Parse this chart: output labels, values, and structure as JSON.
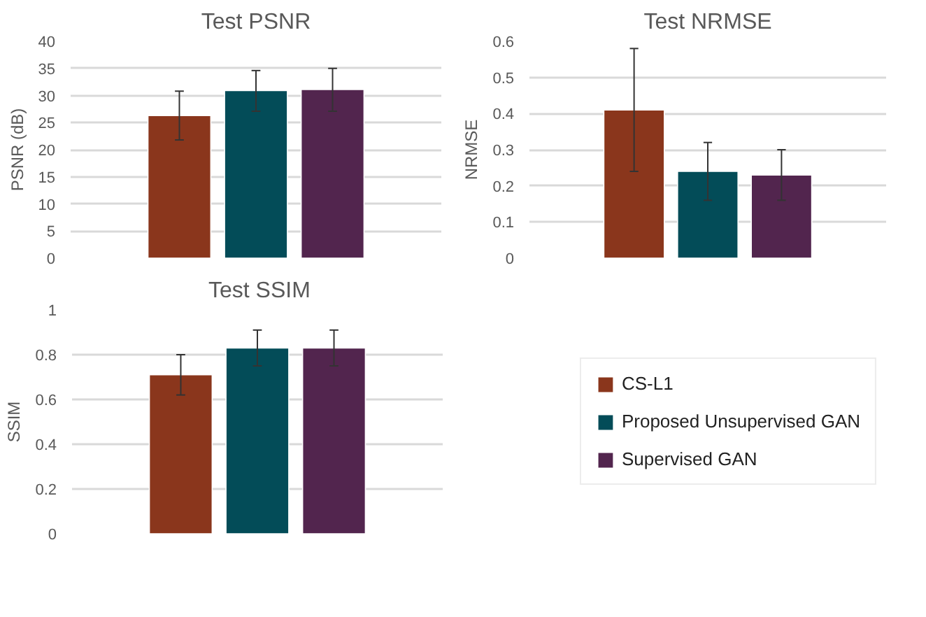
{
  "chart_data": [
    {
      "type": "bar",
      "title": "Test PSNR",
      "ylabel": "PSNR (dB)",
      "categories": [
        null
      ],
      "ylim": [
        0,
        40
      ],
      "yticks": [
        0,
        5,
        10,
        15,
        20,
        25,
        30,
        35,
        40
      ],
      "grid": "y",
      "series": [
        {
          "color": "#8a361c",
          "values": [
            26.3
          ],
          "errors": [
            [
              21.8,
              30.8
            ]
          ]
        },
        {
          "color": "#034c58",
          "values": [
            30.9
          ],
          "errors": [
            [
              27.1,
              34.6
            ]
          ]
        },
        {
          "color": "#52254e",
          "values": [
            31.1
          ],
          "errors": [
            [
              27.1,
              35.0
            ]
          ]
        }
      ]
    },
    {
      "type": "bar",
      "title": "Test NRMSE",
      "ylabel": "NRMSE",
      "categories": [
        null
      ],
      "ylim": [
        0,
        0.6
      ],
      "yticks": [
        0,
        0.1,
        0.2,
        0.3,
        0.4,
        0.5,
        0.6
      ],
      "grid": "y",
      "series": [
        {
          "color": "#8a361c",
          "values": [
            0.41
          ],
          "errors": [
            [
              0.24,
              0.58
            ]
          ]
        },
        {
          "color": "#034c58",
          "values": [
            0.24
          ],
          "errors": [
            [
              0.16,
              0.32
            ]
          ]
        },
        {
          "color": "#52254e",
          "values": [
            0.23
          ],
          "errors": [
            [
              0.16,
              0.3
            ]
          ]
        }
      ]
    },
    {
      "type": "bar",
      "title": "Test SSIM",
      "ylabel": "SSIM",
      "categories": [
        null
      ],
      "ylim": [
        0,
        1
      ],
      "yticks": [
        0,
        0.2,
        0.4,
        0.6,
        0.8,
        1
      ],
      "grid": "y",
      "legend": "right",
      "series": [
        {
          "name": "CS-L1",
          "color": "#8a361c",
          "values": [
            0.71
          ],
          "errors": [
            [
              0.62,
              0.8
            ]
          ]
        },
        {
          "name": "Proposed Unsupervised GAN",
          "color": "#034c58",
          "values": [
            0.83
          ],
          "errors": [
            [
              0.75,
              0.91
            ]
          ]
        },
        {
          "name": "Supervised GAN",
          "color": "#52254e",
          "values": [
            0.83
          ],
          "errors": [
            [
              0.75,
              0.91
            ]
          ]
        }
      ]
    }
  ]
}
